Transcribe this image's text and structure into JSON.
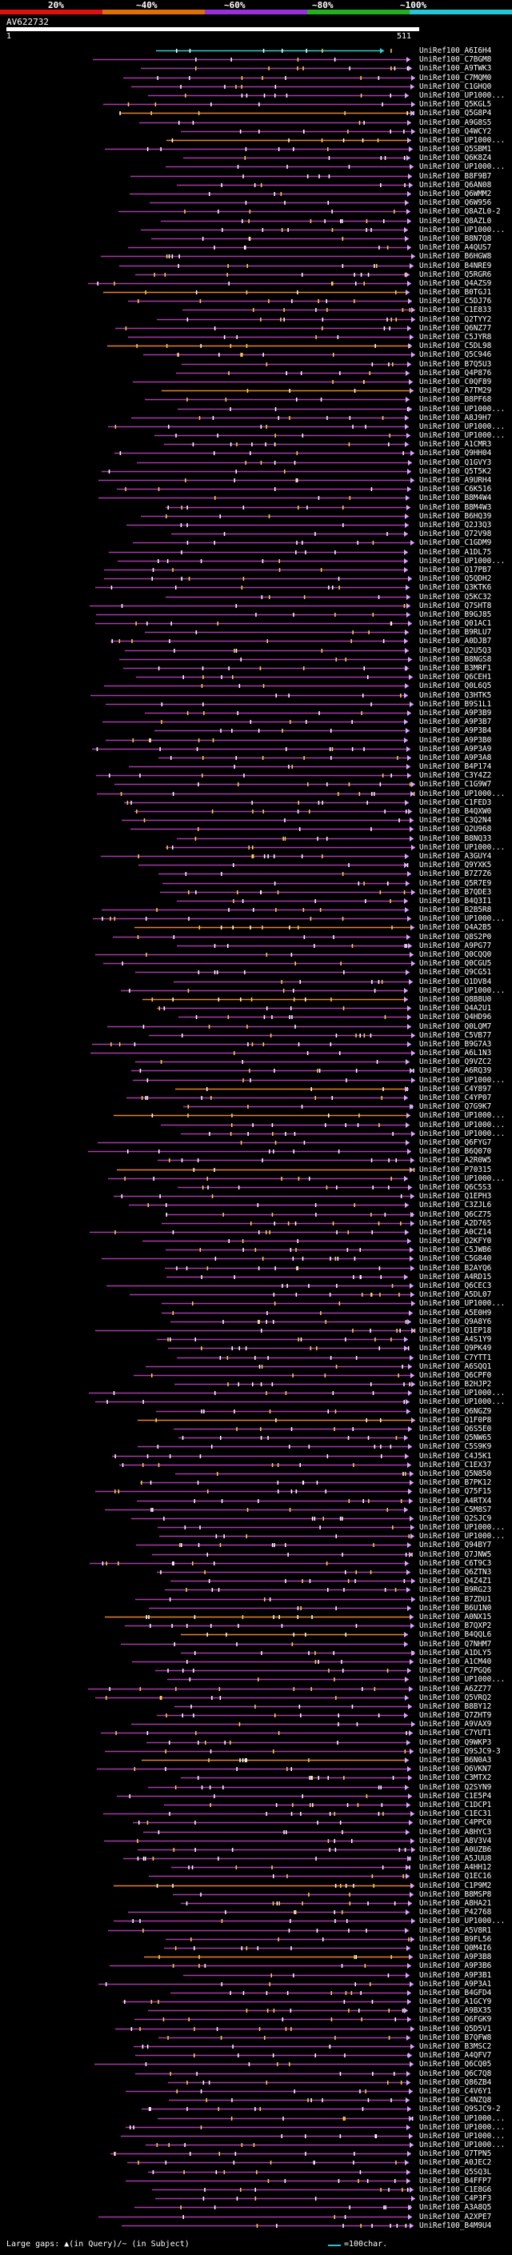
{
  "scale": {
    "ticks": [
      "20%",
      "~40%",
      "~60%",
      "~80%",
      "~100%"
    ],
    "colors": [
      "#e01010",
      "#e07000",
      "#9a2fe0",
      "#20b020",
      "#20c8d8"
    ]
  },
  "query": {
    "id": "AV622732",
    "start": "1",
    "end": "511"
  },
  "colors": {
    "hit": "#a63aa6",
    "hit_orange": "#e8822a",
    "hit_cyan": "#33d0d0",
    "tick": "#ffd24a",
    "background": "#000000"
  },
  "rows": [
    "UniRef100_A6I6H4",
    "UniRef100_C7BGM8",
    "UniRef100_A9TWK3",
    "UniRef100_C7MQM0",
    "UniRef100_C1GHQ0",
    "UniRef100_UP1000...",
    "UniRef100_Q5KGL5",
    "UniRef100_Q5G8P4",
    "UniRef100_A9G8S5",
    "UniRef100_Q4WCY2",
    "UniRef100_UP1000...",
    "UniRef100_Q5SBM1",
    "UniRef100_Q6K8Z4",
    "UniRef100_UP1000...",
    "UniRef100_B8F9B7",
    "UniRef100_Q6AN08",
    "UniRef100_Q6WMM2",
    "UniRef100_Q6W956",
    "UniRef100_Q8AZL0-2",
    "UniRef100_Q8AZL0",
    "UniRef100_UP1000...",
    "UniRef100_B8N7Q8",
    "UniRef100_A4QUS7",
    "UniRef100_B6HGW8",
    "UniRef100_B4NRE9",
    "UniRef100_Q5RGR6",
    "UniRef100_Q4AZS9",
    "UniRef100_B0TGJ1",
    "UniRef100_C5DJ76",
    "UniRef100_C1E833",
    "UniRef100_Q2TYY2",
    "UniRef100_Q6NZ77",
    "UniRef100_C5JYR8",
    "UniRef100_C5DL98",
    "UniRef100_Q5C946",
    "UniRef100_B7Q5U3",
    "UniRef100_Q4P876",
    "UniRef100_C0QF89",
    "UniRef100_A7TM29",
    "UniRef100_B8PF68",
    "UniRef100_UP1000...",
    "UniRef100_A8J9H7",
    "UniRef100_UP1000...",
    "UniRef100_UP1000...",
    "UniRef100_A1CMR3",
    "UniRef100_Q9HH04",
    "UniRef100_Q1GVY3",
    "UniRef100_Q5T5K2",
    "UniRef100_A9URH4",
    "UniRef100_C6K516",
    "UniRef100_B8M4W4",
    "UniRef100_B8M4W3",
    "UniRef100_B6HQ39",
    "UniRef100_Q2J3Q3",
    "UniRef100_Q72V98",
    "UniRef100_C1GDM9",
    "UniRef100_A1DL75",
    "UniRef100_UP1000...",
    "UniRef100_Q17PB7",
    "UniRef100_Q5QDH2",
    "UniRef100_Q3KTK6",
    "UniRef100_Q5KC32",
    "UniRef100_Q7SHT8",
    "UniRef100_B9GJ85",
    "UniRef100_Q01AC1",
    "UniRef100_B9RLU7",
    "UniRef100_A0DJB7",
    "UniRef100_Q2U5Q3",
    "UniRef100_B8NGS8",
    "UniRef100_B3MRF1",
    "UniRef100_Q6CEH1",
    "UniRef100_Q0L6Q5",
    "UniRef100_Q3HTK5",
    "UniRef100_B9S1L1",
    "UniRef100_A9P3B9",
    "UniRef100_A9P3B7",
    "UniRef100_A9P3B4",
    "UniRef100_A9P3B0",
    "UniRef100_A9P3A9",
    "UniRef100_A9P3A8",
    "UniRef100_B4P174",
    "UniRef100_C3Y4Z2",
    "UniRef100_C1G9W7",
    "UniRef100_UP1000...",
    "UniRef100_C1FED3",
    "UniRef100_B4QXW0",
    "UniRef100_C3Q2N4",
    "UniRef100_Q2U968",
    "UniRef100_B8NQ33",
    "UniRef100_UP1000...",
    "UniRef100_A3GUY4",
    "UniRef100_Q9YXK5",
    "UniRef100_B7Z7Z6",
    "UniRef100_Q5R7E9",
    "UniRef100_B7QDE3",
    "UniRef100_B4Q3I1",
    "UniRef100_B2B5R8",
    "UniRef100_UP1000...",
    "UniRef100_Q4A2B5",
    "UniRef100_Q8S2P0",
    "UniRef100_A9PG77",
    "UniRef100_Q0CQQ0",
    "UniRef100_Q0CGU5",
    "UniRef100_Q9CG51",
    "UniRef100_Q1DV84",
    "UniRef100_UP1000...",
    "UniRef100_Q8B8U0",
    "UniRef100_Q4A2U1",
    "UniRef100_Q4HD96",
    "UniRef100_Q0LQM7",
    "UniRef100_C5VB77",
    "UniRef100_B9G7A3",
    "UniRef100_A6L1N3",
    "UniRef100_Q9VZC2",
    "UniRef100_A6RQ39",
    "UniRef100_UP1000...",
    "UniRef100_C4Y897",
    "UniRef100_C4YP07",
    "UniRef100_Q7G9K7",
    "UniRef100_UP1000...",
    "UniRef100_UP1000...",
    "UniRef100_UP1000...",
    "UniRef100_Q6FYG7",
    "UniRef100_B6Q070",
    "UniRef100_A2R0W5",
    "UniRef100_P70315",
    "UniRef100_UP1000...",
    "UniRef100_Q6C5S3",
    "UniRef100_Q1EPH3",
    "UniRef100_C3ZJL6",
    "UniRef100_Q6CZ75",
    "UniRef100_A2D765",
    "UniRef100_A0CZ14",
    "UniRef100_Q2KFY0",
    "UniRef100_C5JWB6",
    "UniRef100_C5G840",
    "UniRef100_B2AYQ6",
    "UniRef100_A4RD15",
    "UniRef100_Q6CEC3",
    "UniRef100_A5DL07",
    "UniRef100_UP1000...",
    "UniRef100_A5E0H9",
    "UniRef100_Q9A8Y6",
    "UniRef100_Q1EP18",
    "UniRef100_A4S1Y9",
    "UniRef100_Q9PK49",
    "UniRef100_C7YTT1",
    "UniRef100_A6SQQ1",
    "UniRef100_Q6CPF0",
    "UniRef100_B2HJP2",
    "UniRef100_UP1000...",
    "UniRef100_UP1000...",
    "UniRef100_Q6NGZ9",
    "UniRef100_Q1F0P8",
    "UniRef100_Q6S5E0",
    "UniRef100_Q5NW65",
    "UniRef100_C5S9K9",
    "UniRef100_C4J5K1",
    "UniRef100_C1EX37",
    "UniRef100_Q5N850",
    "UniRef100_B7PK12",
    "UniRef100_Q75F15",
    "UniRef100_A4RTX4",
    "UniRef100_C5M8S7",
    "UniRef100_Q2SJC9",
    "UniRef100_UP1000...",
    "UniRef100_UP1000...",
    "UniRef100_Q94BY7",
    "UniRef100_Q7JNW5",
    "UniRef100_C6T9C3",
    "UniRef100_Q6ZTN3",
    "UniRef100_Q4Z4Z1",
    "UniRef100_B9RG23",
    "UniRef100_B7ZDU1",
    "UniRef100_B6U1N0",
    "UniRef100_A0NX15",
    "UniRef100_B7QXP2",
    "UniRef100_B4QQL6",
    "UniRef100_Q7NHM7",
    "UniRef100_A1DLY5",
    "UniRef100_A1CM40",
    "UniRef100_C7PGQ6",
    "UniRef100_UP1000...",
    "UniRef100_A6ZZ77",
    "UniRef100_Q5VRQ2",
    "UniRef100_B8BY12",
    "UniRef100_Q7ZHT9",
    "UniRef100_A9VAX9",
    "UniRef100_C7YUT1",
    "UniRef100_Q9WKP3",
    "UniRef100_Q9SJC9-3",
    "UniRef100_B6N0A3",
    "UniRef100_Q6VKN7",
    "UniRef100_C3MTX2",
    "UniRef100_Q2SYN9",
    "UniRef100_C1E5P4",
    "UniRef100_C1DCP1",
    "UniRef100_C1EC31",
    "UniRef100_C4PPC0",
    "UniRef100_A8HYC3",
    "UniRef100_A8V3V4",
    "UniRef100_A0UZB6",
    "UniRef100_A5JUU8",
    "UniRef100_A4HH12",
    "UniRef100_Q1EC16",
    "UniRef100_C1P9M2",
    "UniRef100_B8MSP8",
    "UniRef100_A8HA21",
    "UniRef100_P42768",
    "UniRef100_UP1000...",
    "UniRef100_A5V8R1",
    "UniRef100_B9FL56",
    "UniRef100_Q0M4I6",
    "UniRef100_A9P3B8",
    "UniRef100_A9P3B6",
    "UniRef100_A9P3B1",
    "UniRef100_A9P3A1",
    "UniRef100_B4GFD4",
    "UniRef100_A1GCY9",
    "UniRef100_A9BX35",
    "UniRef100_Q6FGK9",
    "UniRef100_Q5D5V1",
    "UniRef100_B7QFW8",
    "UniRef100_B3MSC2",
    "UniRef100_A4QFV7",
    "UniRef100_Q6CQ05",
    "UniRef100_Q6C7Q8",
    "UniRef100_Q86ZB4",
    "UniRef100_C4V6Y1",
    "UniRef100_C4NZQ8",
    "UniRef100_Q9SJC9-2",
    "UniRef100_UP1000...",
    "UniRef100_UP1000...",
    "UniRef100_UP1000...",
    "UniRef100_UP1000...",
    "UniRef100_Q7TPN5",
    "UniRef100_A0JEC2",
    "UniRef100_Q5SQ3L",
    "UniRef100_B4FFP7",
    "UniRef100_C1E8G6",
    "UniRef100_C4P3F3",
    "UniRef100_A3A8Q5",
    "UniRef100_A2XPE7",
    "UniRef100_B4M9U4"
  ],
  "legend": {
    "text": "Large gaps: ▲(in Query)/~ (in Subject)",
    "scale_text": "=100char."
  }
}
